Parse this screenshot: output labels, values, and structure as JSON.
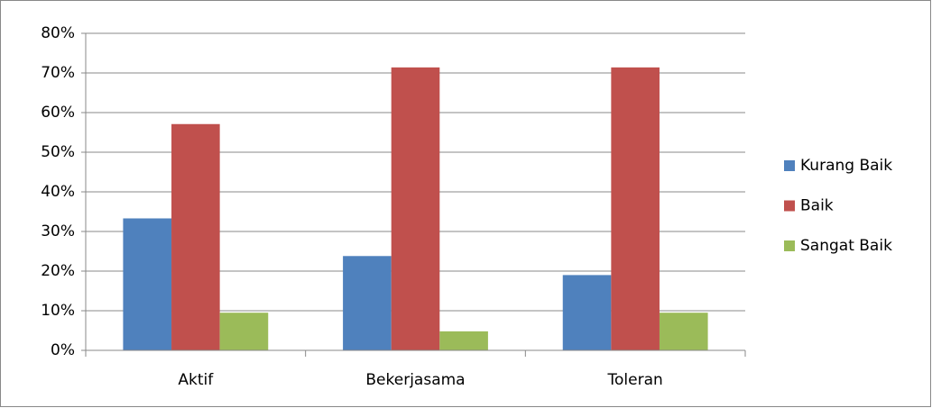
{
  "chart_data": {
    "type": "bar",
    "categories": [
      "Aktif",
      "Bekerjasama",
      "Toleran"
    ],
    "series": [
      {
        "name": "Kurang Baik",
        "color": "#4f81bd",
        "values": [
          33.3,
          23.8,
          19.0
        ]
      },
      {
        "name": "Baik",
        "color": "#c0504d",
        "values": [
          57.1,
          71.4,
          71.4
        ]
      },
      {
        "name": "Sangat Baik",
        "color": "#9bbb59",
        "values": [
          9.5,
          4.8,
          9.5
        ]
      }
    ],
    "ylim": [
      0,
      80
    ],
    "yticks": [
      {
        "value": 0,
        "label": "0%"
      },
      {
        "value": 10,
        "label": "10%"
      },
      {
        "value": 20,
        "label": "20%"
      },
      {
        "value": 30,
        "label": "30%"
      },
      {
        "value": 40,
        "label": "40%"
      },
      {
        "value": 50,
        "label": "50%"
      },
      {
        "value": 60,
        "label": "60%"
      },
      {
        "value": 70,
        "label": "70%"
      },
      {
        "value": 80,
        "label": "80%"
      }
    ],
    "grid": true,
    "legend": "right"
  }
}
